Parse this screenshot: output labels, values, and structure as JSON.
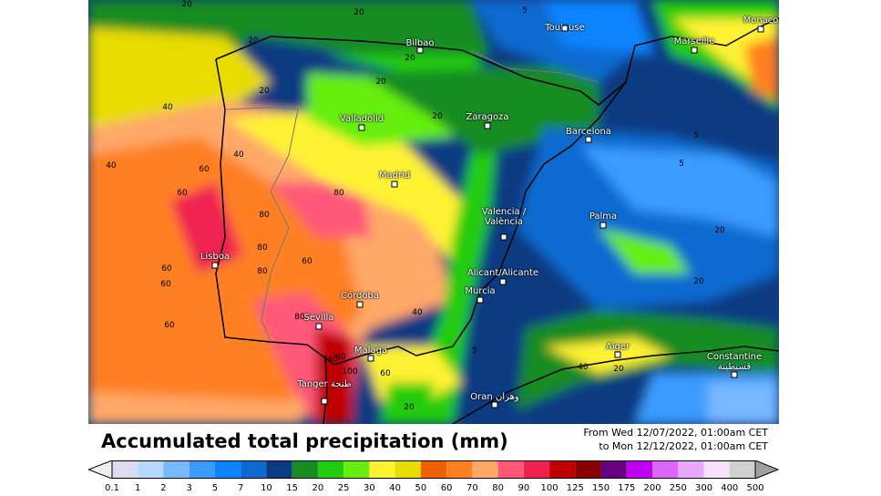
{
  "title": "Accumulated total precipitation (mm)",
  "period": {
    "from": "From Wed 12/07/2022, 01:00am CET",
    "to": "to Mon 12/12/2022, 01:00am CET"
  },
  "legend": {
    "ticks": [
      "0.1",
      "1",
      "2",
      "3",
      "5",
      "7",
      "10",
      "15",
      "20",
      "25",
      "30",
      "40",
      "50",
      "60",
      "70",
      "80",
      "90",
      "100",
      "125",
      "150",
      "175",
      "200",
      "250",
      "300",
      "400",
      "500"
    ],
    "colors": [
      "#dcdcf0",
      "#b4d8ff",
      "#78b8ff",
      "#3a9cff",
      "#0a84ff",
      "#0a6ad0",
      "#0a3a82",
      "#188c22",
      "#20cc10",
      "#66ee10",
      "#fff230",
      "#e8dc00",
      "#ee6000",
      "#ff8020",
      "#ffa868",
      "#ff5878",
      "#f02050",
      "#c00000",
      "#880000",
      "#660080",
      "#c000f0",
      "#dd66ff",
      "#e8a8ff",
      "#f8e0ff",
      "#d0d0d0"
    ],
    "under_color": "#eeeeee",
    "over_color": "#a0a0a0"
  },
  "cities": [
    {
      "name": "Bilbao"
    },
    {
      "name": "Toulouse"
    },
    {
      "name": "Marseille"
    },
    {
      "name": "Monaco"
    },
    {
      "name": "Valladolid"
    },
    {
      "name": "Zaragoza"
    },
    {
      "name": "Barcelona"
    },
    {
      "name": "Madrid"
    },
    {
      "name": "Valencia /\nValència"
    },
    {
      "name": "Palma"
    },
    {
      "name": "Lisboa"
    },
    {
      "name": "Alicant/Alicante"
    },
    {
      "name": "Murcia"
    },
    {
      "name": "Córdoba"
    },
    {
      "name": "Sevilla"
    },
    {
      "name": "Malaga"
    },
    {
      "name": "Tanger طنجة"
    },
    {
      "name": "Oran وهران"
    },
    {
      "name": "Alger"
    },
    {
      "name": "Constantine\nقسنطينة"
    }
  ],
  "contour_labels": [
    "20",
    "20",
    "20",
    "40",
    "20",
    "20",
    "40",
    "40",
    "60",
    "60",
    "80",
    "80",
    "60",
    "80",
    "60",
    "80",
    "60",
    "60",
    "40",
    "60",
    "80",
    "100",
    "60",
    "20",
    "5",
    "5",
    "20",
    "20",
    "40",
    "20",
    "5",
    "5",
    "20",
    "20",
    "40"
  ]
}
